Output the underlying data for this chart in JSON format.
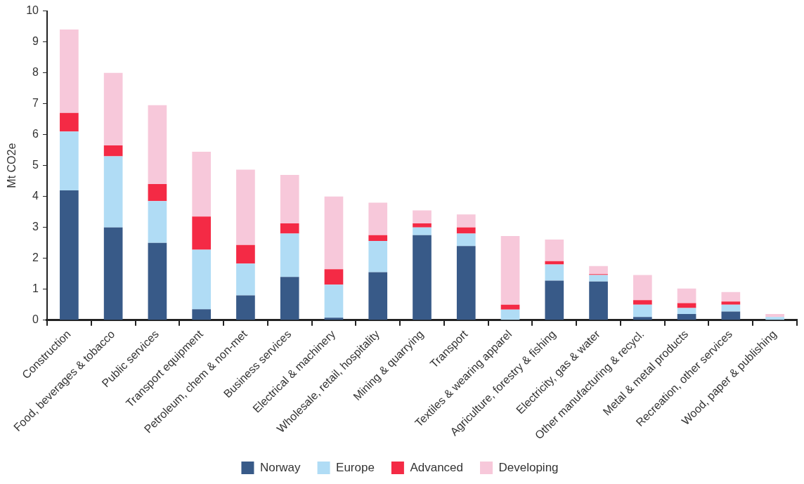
{
  "chart_data": {
    "type": "bar",
    "stacked": true,
    "ylabel": "Mt CO2e",
    "ylim": [
      0,
      10
    ],
    "yticks": [
      0,
      1,
      2,
      3,
      4,
      5,
      6,
      7,
      8,
      9,
      10
    ],
    "grid": false,
    "legend": "bottom",
    "categories": [
      "Construction",
      "Food, beverages & tobacco",
      "Public services",
      "Transport equipment",
      "Petroleum, chem & non-met",
      "Business services",
      "Electrical & machinery",
      "Wholesale, retail, hospitality",
      "Mining & quarrying",
      "Transport",
      "Textiles & wearing apparel",
      "Agriculture, forestry & fishing",
      "Electricity, gas & water",
      "Other manufacturing & recycl.",
      "Metal & metal products",
      "Recreation, other services",
      "Wood, paper & publishing"
    ],
    "series": [
      {
        "name": "Norway",
        "color": "#385a88",
        "values": [
          4.2,
          3.0,
          2.5,
          0.35,
          0.8,
          1.4,
          0.08,
          1.55,
          2.75,
          2.4,
          0,
          1.28,
          1.25,
          0.1,
          0.2,
          0.28,
          0
        ]
      },
      {
        "name": "Europe",
        "color": "#b0dcf5",
        "values": [
          1.9,
          2.3,
          1.35,
          1.93,
          1.03,
          1.4,
          1.07,
          1.01,
          0.25,
          0.4,
          0.34,
          0.52,
          0.21,
          0.4,
          0.19,
          0.22,
          0.1
        ]
      },
      {
        "name": "Advanced",
        "color": "#f42a45",
        "values": [
          0.6,
          0.35,
          0.55,
          1.07,
          0.6,
          0.33,
          0.5,
          0.19,
          0.13,
          0.2,
          0.16,
          0.11,
          0.03,
          0.15,
          0.16,
          0.1,
          0
        ]
      },
      {
        "name": "Developing",
        "color": "#f7c8da",
        "values": [
          2.7,
          2.35,
          2.55,
          2.1,
          2.44,
          1.57,
          2.35,
          1.05,
          0.42,
          0.42,
          2.22,
          0.7,
          0.26,
          0.81,
          0.47,
          0.31,
          0.1
        ]
      }
    ]
  }
}
